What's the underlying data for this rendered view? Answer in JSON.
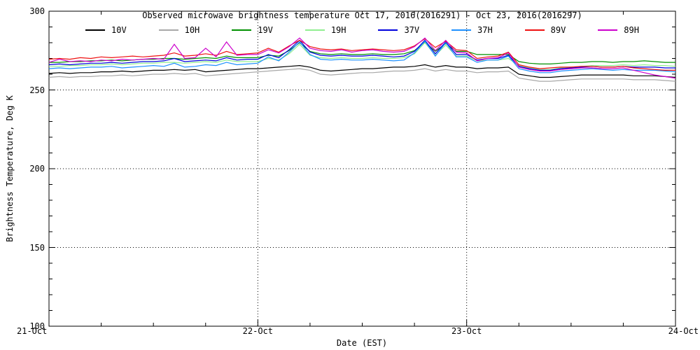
{
  "chart_data": {
    "type": "line",
    "title": "Observed microwave brightness temperature Oct 17, 2016(2016291) - Oct 23, 2016(2016297)",
    "xlabel": "Date (EST)",
    "ylabel": "Brightness Temperature, Deg K",
    "x_unit": "days after 21-Oct 00:00 EST",
    "xlim": [
      0,
      3
    ],
    "ylim": [
      100,
      300
    ],
    "legend_position": "top",
    "grid": {
      "h_dotted_at": [
        250,
        200,
        150
      ],
      "v_dotted_at": [
        1,
        2
      ]
    },
    "minor_tick_interval_x_days": 0.25,
    "minor_tick_interval_y": 10,
    "x_ticks": [
      {
        "value": 0,
        "label": "21-Oct"
      },
      {
        "value": 1,
        "label": "22-Oct"
      },
      {
        "value": 2,
        "label": "23-Oct"
      },
      {
        "value": 3,
        "label": "24-Oct"
      }
    ],
    "y_ticks": [
      {
        "value": 300,
        "label": "300"
      },
      {
        "value": 250,
        "label": "250"
      },
      {
        "value": 200,
        "label": "200"
      },
      {
        "value": 150,
        "label": "150"
      },
      {
        "value": 100,
        "label": "100"
      }
    ],
    "x": [
      0,
      0.05,
      0.1,
      0.15,
      0.2,
      0.25,
      0.3,
      0.35,
      0.4,
      0.45,
      0.5,
      0.55,
      0.6,
      0.65,
      0.7,
      0.75,
      0.8,
      0.85,
      0.9,
      0.95,
      1,
      1.05,
      1.1,
      1.15,
      1.2,
      1.25,
      1.3,
      1.35,
      1.4,
      1.45,
      1.5,
      1.55,
      1.6,
      1.65,
      1.7,
      1.75,
      1.8,
      1.85,
      1.9,
      1.95,
      2,
      2.05,
      2.1,
      2.15,
      2.2,
      2.25,
      2.3,
      2.35,
      2.4,
      2.45,
      2.5,
      2.55,
      2.6,
      2.65,
      2.7,
      2.75,
      2.8,
      2.85,
      2.9,
      2.95,
      3
    ],
    "series": [
      {
        "name": "10V",
        "color": "#000000",
        "values": [
          260.5,
          261,
          260.5,
          261,
          261,
          261.5,
          261.5,
          262,
          261.5,
          262,
          262.5,
          262.5,
          263,
          262.5,
          263,
          261.5,
          262,
          262.5,
          263,
          263.5,
          263.5,
          264,
          264.5,
          265,
          265.5,
          264.5,
          262.5,
          262,
          262.5,
          263,
          263.5,
          263.5,
          264,
          264.5,
          264.5,
          265,
          266,
          264.5,
          265.5,
          264.5,
          264.5,
          263.5,
          264,
          264,
          264.5,
          260,
          259,
          258,
          258,
          258.5,
          259,
          259.5,
          259.5,
          259.5,
          259.5,
          259.5,
          259,
          259,
          259,
          258.5,
          258
        ]
      },
      {
        "name": "10H",
        "color": "#a8a8a8",
        "values": [
          258,
          258.5,
          258,
          258.5,
          258.5,
          259,
          259,
          259.5,
          259,
          259.5,
          260,
          260,
          260.5,
          260,
          260.5,
          259,
          259.5,
          260,
          260.5,
          261,
          261.5,
          262,
          262.5,
          263,
          263.5,
          262.5,
          260,
          259.5,
          260,
          260.5,
          261,
          261,
          261.5,
          262,
          262,
          262.5,
          263.5,
          262,
          263,
          262,
          262,
          261,
          261.5,
          261.5,
          262,
          257.5,
          256.5,
          255.5,
          255.5,
          256,
          256.5,
          257,
          257,
          257,
          257,
          257,
          256.5,
          256.5,
          256.5,
          256,
          255.5
        ]
      },
      {
        "name": "19V",
        "color": "#009000",
        "values": [
          267.5,
          267.5,
          268,
          268,
          268.5,
          268.5,
          269,
          268.5,
          269,
          269.5,
          269.5,
          270,
          270,
          269.5,
          270,
          270.5,
          270,
          271.5,
          270.5,
          270.5,
          270.5,
          272,
          271.5,
          275,
          280,
          274.5,
          273,
          272.5,
          273,
          272.5,
          272.5,
          273,
          272.5,
          272.5,
          273,
          275,
          280.5,
          274.5,
          279.5,
          274.5,
          274.5,
          272.5,
          272.5,
          272.5,
          272.5,
          268,
          267,
          266.5,
          266.5,
          267,
          267.5,
          267.5,
          268,
          268,
          267.5,
          268,
          268,
          268.5,
          268,
          267.5,
          267.5
        ]
      },
      {
        "name": "19H",
        "color": "#90ee90",
        "values": [
          265,
          265,
          265.5,
          265.5,
          266,
          266,
          266.5,
          266,
          266.5,
          267,
          267,
          267.5,
          267.5,
          267,
          267.5,
          268,
          267.5,
          269,
          268,
          268,
          268,
          270,
          269,
          273,
          279,
          272,
          270.5,
          270,
          270.5,
          270,
          270,
          270.5,
          270,
          270,
          270.5,
          273,
          280,
          272,
          278.5,
          271.5,
          271.5,
          268.5,
          269,
          269,
          270,
          265.5,
          264,
          263,
          263,
          264,
          264.5,
          265,
          265.5,
          265.5,
          265.5,
          266,
          265.5,
          266,
          265.5,
          265.5,
          265
        ]
      },
      {
        "name": "37V",
        "color": "#0000dd",
        "values": [
          266,
          266.5,
          266,
          266.5,
          267,
          267,
          267.5,
          267,
          267.5,
          268,
          268,
          268.5,
          270,
          268,
          268.5,
          269,
          268.5,
          270.5,
          269,
          269.5,
          269.5,
          272.5,
          270.5,
          275.5,
          281.5,
          274,
          272,
          271.5,
          272,
          271.5,
          271.5,
          272,
          271.5,
          271,
          271.5,
          274.5,
          281.5,
          273,
          280.5,
          272.5,
          272.5,
          269,
          270,
          270,
          272,
          265,
          263.5,
          262.5,
          262.5,
          263.5,
          264,
          264.5,
          265,
          264.5,
          264.5,
          265,
          264.5,
          264.5,
          264.5,
          264,
          264
        ]
      },
      {
        "name": "37H",
        "color": "#1e90ff",
        "values": [
          263.5,
          264,
          263.5,
          264,
          264.5,
          264.5,
          265,
          264,
          264.5,
          265,
          265.5,
          265,
          267,
          264.5,
          265,
          266,
          265.5,
          267.5,
          266,
          266.5,
          267,
          271,
          268.5,
          274,
          280.5,
          272.5,
          269.5,
          269,
          269.5,
          269,
          269,
          269.5,
          269,
          268.5,
          269,
          273.5,
          281,
          271.5,
          280,
          271,
          271,
          267.5,
          269,
          269,
          271.5,
          263.5,
          262,
          261,
          261,
          262,
          262.5,
          263,
          263.5,
          263,
          262.5,
          263,
          262.5,
          262.5,
          262.5,
          262,
          261.5
        ]
      },
      {
        "name": "89V",
        "color": "#ee1111",
        "values": [
          269.5,
          270,
          269.5,
          270.5,
          270,
          271,
          270.5,
          271,
          271.5,
          271,
          271.5,
          272,
          273.5,
          271.5,
          272,
          273,
          272,
          274.5,
          272.5,
          273,
          273.5,
          276.5,
          274,
          278,
          281.5,
          277.5,
          276,
          275.5,
          276,
          275,
          275.5,
          276,
          275.5,
          275,
          275.5,
          278,
          282.5,
          277,
          281,
          275.5,
          275,
          270,
          271,
          271.5,
          274,
          266,
          264.5,
          263.5,
          264,
          264.5,
          264.5,
          265,
          265,
          264.5,
          264.5,
          265,
          264,
          263.5,
          263,
          262.5,
          262.5
        ]
      },
      {
        "name": "89H",
        "color": "#cc00cc",
        "values": [
          267.5,
          269.5,
          268,
          268.5,
          268,
          269,
          268.5,
          269.5,
          269,
          269.5,
          270,
          269.5,
          279,
          270,
          270.5,
          276.5,
          271,
          280.5,
          272,
          272.5,
          272.5,
          275.5,
          273.5,
          277.5,
          283,
          276.5,
          275,
          274.5,
          275.5,
          274,
          275,
          275.5,
          274.5,
          274,
          274.5,
          277.5,
          283,
          275,
          281.5,
          274,
          273.5,
          268.5,
          270,
          270.5,
          273.5,
          264.5,
          263,
          262,
          262,
          263,
          263.5,
          264,
          264,
          263.5,
          263.5,
          264,
          262.5,
          261,
          259.5,
          258.5,
          257.5
        ]
      }
    ]
  }
}
